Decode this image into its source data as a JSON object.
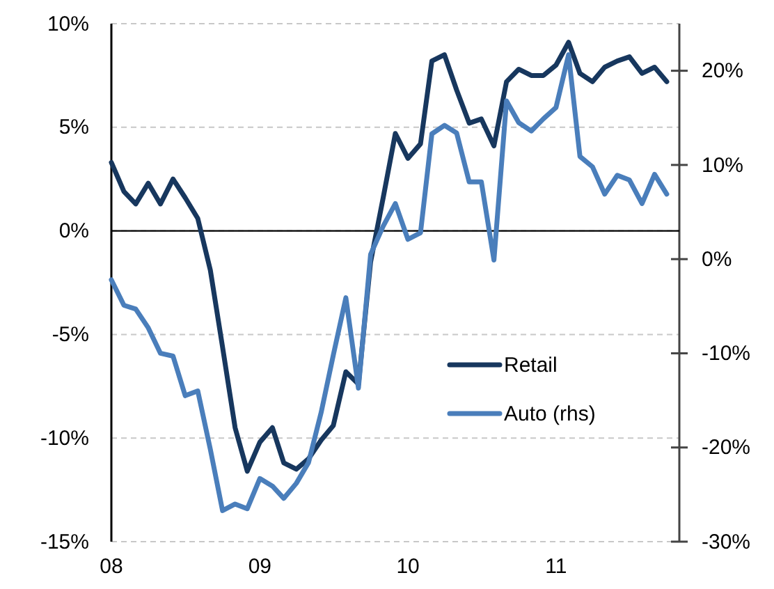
{
  "chart_data": {
    "type": "line",
    "x": [
      "2008-01",
      "2008-02",
      "2008-03",
      "2008-04",
      "2008-05",
      "2008-06",
      "2008-07",
      "2008-08",
      "2008-09",
      "2008-10",
      "2008-11",
      "2008-12",
      "2009-01",
      "2009-02",
      "2009-03",
      "2009-04",
      "2009-05",
      "2009-06",
      "2009-07",
      "2009-08",
      "2009-09",
      "2009-10",
      "2009-11",
      "2009-12",
      "2010-01",
      "2010-02",
      "2010-03",
      "2010-04",
      "2010-05",
      "2010-06",
      "2010-07",
      "2010-08",
      "2010-09",
      "2010-10",
      "2010-11",
      "2010-12",
      "2011-01",
      "2011-02",
      "2011-03",
      "2011-04",
      "2011-05",
      "2011-06",
      "2011-07",
      "2011-08",
      "2011-09",
      "2011-10"
    ],
    "series": [
      {
        "name": "Retail",
        "color": "#17375e",
        "values": [
          3.3,
          1.9,
          1.3,
          2.3,
          1.3,
          2.5,
          1.6,
          0.6,
          -1.9,
          -5.6,
          -9.5,
          -11.6,
          -10.2,
          -9.5,
          -11.2,
          -11.5,
          -11.0,
          -10.1,
          -9.4,
          -6.8,
          -7.4,
          -1.5,
          1.6,
          4.7,
          3.5,
          4.2,
          8.2,
          8.5,
          6.8,
          5.2,
          5.4,
          4.1,
          7.2,
          7.8,
          7.5,
          7.5,
          8.0,
          9.1,
          7.6,
          7.2,
          7.9,
          8.2,
          8.4,
          7.6,
          7.9,
          7.2
        ]
      },
      {
        "name": "Auto (rhs)",
        "color": "#4a7ebb",
        "axis": "y2",
        "values": [
          -2.2,
          -4.9,
          -5.3,
          -7.3,
          -10.0,
          -10.3,
          -14.5,
          -14.0,
          -20.2,
          -26.7,
          -26.0,
          -26.5,
          -23.3,
          -24.1,
          -25.4,
          -23.8,
          -21.6,
          -16.3,
          -10.2,
          -4.1,
          -13.7,
          0.5,
          3.5,
          5.9,
          2.1,
          2.8,
          13.3,
          14.2,
          13.4,
          8.2,
          8.2,
          -0.1,
          16.8,
          14.5,
          13.6,
          14.9,
          16.1,
          21.7,
          10.9,
          9.8,
          6.9,
          8.9,
          8.4,
          5.9,
          9.0,
          6.9
        ]
      }
    ],
    "xlim": [
      "2008-01",
      "2011-11"
    ],
    "xticks": [
      {
        "value": "2008-01",
        "label": "08"
      },
      {
        "value": "2009-01",
        "label": "09"
      },
      {
        "value": "2010-01",
        "label": "10"
      },
      {
        "value": "2011-01",
        "label": "11"
      }
    ],
    "ylim": [
      -15,
      10
    ],
    "yticks": [
      {
        "value": -15,
        "label": "-15%"
      },
      {
        "value": -10,
        "label": "-10%"
      },
      {
        "value": -5,
        "label": "-5%"
      },
      {
        "value": 0,
        "label": "0%"
      },
      {
        "value": 5,
        "label": "5%"
      },
      {
        "value": 10,
        "label": "10%"
      }
    ],
    "y2lim": [
      -30,
      25
    ],
    "y2ticks": [
      {
        "value": -30,
        "label": "-30%"
      },
      {
        "value": -20,
        "label": "-20%"
      },
      {
        "value": -10,
        "label": "-10%"
      },
      {
        "value": 0,
        "label": "0%"
      },
      {
        "value": 10,
        "label": "10%"
      },
      {
        "value": 20,
        "label": "20%"
      }
    ],
    "ref_lines": [
      {
        "axis": "y",
        "value": 0,
        "color": "#000000"
      }
    ],
    "grid": "y",
    "legend": "bottom right",
    "line_style": "solid",
    "marker": "none"
  }
}
